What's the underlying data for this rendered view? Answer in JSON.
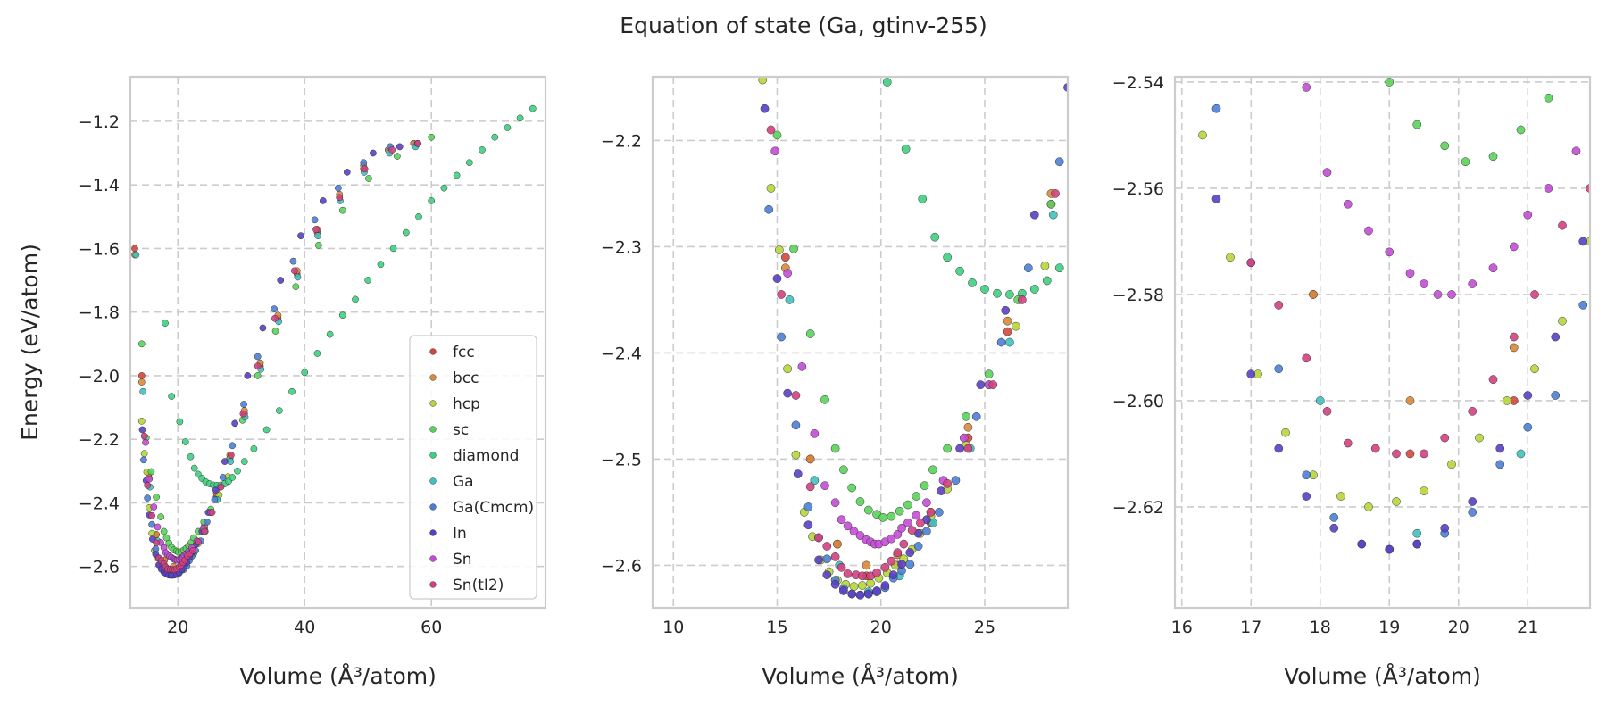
{
  "figure": {
    "title": "Equation of state (Ga, gtinv-255)"
  },
  "chart_data": [
    {
      "type": "scatter",
      "title": "",
      "xlabel": "Volume (Å³/atom)",
      "ylabel": "Energy (eV/atom)",
      "xlim": [
        12.5,
        78
      ],
      "ylim": [
        -2.73,
        -1.06
      ],
      "xticks": [
        "20",
        "40",
        "60"
      ],
      "yticks": [
        "−1.2",
        "−1.4",
        "−1.6",
        "−1.8",
        "−2.0",
        "−2.2",
        "−2.4",
        "−2.6"
      ],
      "grid": true,
      "legend_position": "bottom-right",
      "series": [
        {
          "name": "fcc",
          "color": "#d1473f",
          "x": [
            13.2,
            14.3,
            15.4,
            16.6,
            17.9,
            19.3,
            20.8,
            22.4,
            24.2,
            26.1,
            28.2,
            30.5,
            33.0,
            35.8,
            38.8,
            42.0,
            45.5,
            49.3,
            53.2,
            57.2
          ],
          "y": [
            -1.6,
            -2.0,
            -2.31,
            -2.5,
            -2.58,
            -2.61,
            -2.6,
            -2.56,
            -2.48,
            -2.38,
            -2.26,
            -2.12,
            -1.97,
            -1.82,
            -1.68,
            -1.55,
            -1.44,
            -1.35,
            -1.29,
            -1.27
          ]
        },
        {
          "name": "bcc",
          "color": "#d98a3a",
          "x": [
            13.2,
            14.3,
            15.4,
            16.6,
            17.9,
            19.3,
            20.8,
            22.4,
            24.2,
            26.1,
            28.2,
            30.5,
            33.0,
            35.8,
            38.8,
            42.0,
            45.5,
            49.3,
            53.2,
            57.2
          ],
          "y": [
            -1.62,
            -2.02,
            -2.32,
            -2.5,
            -2.58,
            -2.6,
            -2.59,
            -2.55,
            -2.47,
            -2.37,
            -2.25,
            -2.11,
            -1.96,
            -1.81,
            -1.67,
            -1.54,
            -1.43,
            -1.34,
            -1.29,
            -1.27
          ]
        },
        {
          "name": "hcp",
          "color": "#b6d63a",
          "x": [
            14.3,
            14.7,
            15.1,
            15.5,
            15.9,
            16.3,
            16.7,
            17.1,
            17.5,
            17.9,
            18.3,
            18.7,
            19.1,
            19.5,
            19.9,
            20.3,
            20.7,
            21.1,
            21.5,
            21.9,
            22.4,
            23.2,
            24.1,
            25.2,
            26.5,
            27.9
          ],
          "y": [
            -2.143,
            -2.245,
            -2.303,
            -2.415,
            -2.496,
            -2.55,
            -2.573,
            -2.595,
            -2.606,
            -2.614,
            -2.618,
            -2.62,
            -2.619,
            -2.617,
            -2.612,
            -2.607,
            -2.6,
            -2.594,
            -2.585,
            -2.57,
            -2.554,
            -2.528,
            -2.487,
            -2.43,
            -2.375,
            -2.318
          ]
        },
        {
          "name": "sc",
          "color": "#5ad35a",
          "x": [
            14.3,
            15.0,
            15.8,
            16.6,
            17.3,
            17.8,
            18.2,
            18.6,
            19.0,
            19.4,
            19.8,
            20.1,
            20.5,
            20.9,
            21.3,
            21.7,
            22.1,
            22.5,
            23.2,
            24.1,
            25.2,
            26.6,
            28.2,
            30.2,
            32.6,
            35.4,
            38.6,
            42.2,
            46.0,
            50.1,
            54.6,
            60.0
          ],
          "y": [
            -1.9,
            -2.195,
            -2.302,
            -2.382,
            -2.444,
            -2.49,
            -2.51,
            -2.527,
            -2.54,
            -2.548,
            -2.552,
            -2.555,
            -2.554,
            -2.549,
            -2.543,
            -2.535,
            -2.525,
            -2.51,
            -2.49,
            -2.46,
            -2.42,
            -2.35,
            -2.26,
            -2.14,
            -2.0,
            -1.86,
            -1.72,
            -1.59,
            -1.48,
            -1.38,
            -1.31,
            -1.25
          ]
        },
        {
          "name": "diamond",
          "color": "#3ecf80",
          "x": [
            18.0,
            19.0,
            20.3,
            21.2,
            22.0,
            22.6,
            23.2,
            23.8,
            24.4,
            25.0,
            25.6,
            26.2,
            26.8,
            27.4,
            28.0,
            28.6,
            29.4,
            30.5,
            32,
            34,
            36,
            38,
            40,
            42,
            44,
            46,
            48,
            50,
            52,
            54,
            56,
            58,
            60,
            62,
            64,
            66,
            68,
            70,
            72,
            74,
            76
          ],
          "y": [
            -1.835,
            -2.065,
            -2.145,
            -2.208,
            -2.255,
            -2.291,
            -2.31,
            -2.323,
            -2.334,
            -2.34,
            -2.344,
            -2.345,
            -2.344,
            -2.34,
            -2.332,
            -2.32,
            -2.3,
            -2.27,
            -2.23,
            -2.17,
            -2.11,
            -2.05,
            -1.99,
            -1.93,
            -1.87,
            -1.81,
            -1.76,
            -1.7,
            -1.65,
            -1.6,
            -1.55,
            -1.5,
            -1.45,
            -1.41,
            -1.37,
            -1.33,
            -1.29,
            -1.25,
            -1.22,
            -1.19,
            -1.16
          ]
        },
        {
          "name": "Ga",
          "color": "#3fc2c0",
          "x": [
            13.4,
            14.5,
            15.6,
            16.8,
            18.0,
            19.4,
            20.9,
            22.5,
            24.3,
            26.2,
            28.3,
            30.6,
            33.1,
            35.9,
            38.9,
            42.1,
            45.6,
            49.4,
            53.4,
            57.5
          ],
          "y": [
            -1.62,
            -2.05,
            -2.35,
            -2.52,
            -2.6,
            -2.625,
            -2.61,
            -2.56,
            -2.49,
            -2.39,
            -2.27,
            -2.13,
            -1.98,
            -1.83,
            -1.69,
            -1.56,
            -1.45,
            -1.36,
            -1.3,
            -1.28
          ]
        },
        {
          "name": "Ga(Cmcm)",
          "color": "#4b7fd6",
          "x": [
            14.6,
            15.2,
            15.9,
            16.5,
            17.0,
            17.4,
            17.8,
            18.2,
            18.6,
            19.0,
            19.4,
            19.8,
            20.2,
            20.6,
            21.0,
            21.4,
            21.8,
            22.2,
            22.8,
            23.6,
            24.6,
            25.8,
            27.1,
            28.6,
            30.4,
            32.6,
            35.2,
            38.2,
            41.6,
            45.3,
            49.3,
            53.5,
            57.8
          ],
          "y": [
            -2.265,
            -2.385,
            -2.468,
            -2.545,
            -2.574,
            -2.594,
            -2.614,
            -2.622,
            -2.627,
            -2.628,
            -2.627,
            -2.625,
            -2.621,
            -2.612,
            -2.605,
            -2.599,
            -2.582,
            -2.568,
            -2.55,
            -2.52,
            -2.46,
            -2.39,
            -2.32,
            -2.22,
            -2.09,
            -1.94,
            -1.79,
            -1.64,
            -1.51,
            -1.41,
            -1.33,
            -1.28,
            -1.27
          ]
        },
        {
          "name": "In",
          "color": "#5a3fc4",
          "x": [
            14.4,
            15.0,
            15.5,
            16.0,
            16.5,
            17.0,
            17.4,
            17.8,
            18.2,
            18.6,
            19.0,
            19.4,
            19.8,
            20.2,
            20.6,
            21.0,
            21.4,
            21.8,
            22.2,
            22.9,
            23.8,
            24.8,
            26.0,
            27.4,
            29.0,
            31.0,
            33.4,
            36.2,
            39.4,
            42.9,
            46.7,
            50.8,
            55.0
          ],
          "y": [
            -2.17,
            -2.33,
            -2.438,
            -2.514,
            -2.562,
            -2.595,
            -2.609,
            -2.618,
            -2.624,
            -2.627,
            -2.628,
            -2.627,
            -2.624,
            -2.619,
            -2.609,
            -2.599,
            -2.588,
            -2.57,
            -2.557,
            -2.53,
            -2.49,
            -2.43,
            -2.36,
            -2.27,
            -2.15,
            -2.0,
            -1.85,
            -1.7,
            -1.56,
            -1.45,
            -1.36,
            -1.3,
            -1.28
          ]
        },
        {
          "name": "Sn",
          "color": "#c44bd6",
          "x": [
            14.9,
            15.5,
            16.2,
            16.8,
            17.3,
            17.8,
            18.1,
            18.4,
            18.7,
            19.0,
            19.3,
            19.5,
            19.7,
            19.9,
            20.2,
            20.5,
            20.8,
            21.0,
            21.3,
            21.7,
            22.2,
            23.0,
            24.0,
            25.2
          ],
          "y": [
            -2.21,
            -2.325,
            -2.413,
            -2.476,
            -2.525,
            -2.541,
            -2.557,
            -2.563,
            -2.568,
            -2.572,
            -2.576,
            -2.578,
            -2.58,
            -2.58,
            -2.578,
            -2.575,
            -2.571,
            -2.565,
            -2.56,
            -2.553,
            -2.541,
            -2.52,
            -2.48,
            -2.43
          ]
        },
        {
          "name": "Sn(tI2)",
          "color": "#d43f82",
          "x": [
            14.7,
            15.2,
            15.9,
            16.6,
            17.0,
            17.4,
            17.8,
            18.1,
            18.4,
            18.8,
            19.1,
            19.5,
            19.8,
            20.2,
            20.5,
            20.8,
            21.1,
            21.5,
            21.9,
            22.4,
            23.2,
            24.2,
            25.4,
            26.8,
            28.4,
            30.3,
            32.6,
            35.3,
            38.4,
            41.8,
            45.5,
            49.5,
            53.8,
            57.9
          ],
          "y": [
            -2.19,
            -2.345,
            -2.44,
            -2.526,
            -2.574,
            -2.582,
            -2.592,
            -2.602,
            -2.608,
            -2.609,
            -2.61,
            -2.61,
            -2.607,
            -2.602,
            -2.596,
            -2.588,
            -2.58,
            -2.567,
            -2.56,
            -2.55,
            -2.523,
            -2.49,
            -2.43,
            -2.35,
            -2.25,
            -2.12,
            -1.97,
            -1.82,
            -1.67,
            -1.54,
            -1.44,
            -1.35,
            -1.29,
            -1.27
          ]
        }
      ]
    },
    {
      "type": "scatter",
      "title": "",
      "xlabel": "Volume (Å³/atom)",
      "ylabel": "",
      "xlim": [
        9,
        29
      ],
      "ylim": [
        -2.64,
        -2.14
      ],
      "xticks": [
        "10",
        "15",
        "20",
        "25"
      ],
      "yticks": [
        "−2.2",
        "−2.3",
        "−2.4",
        "−2.5",
        "−2.6"
      ],
      "grid": true,
      "legend_position": "none",
      "series": "same as panel 1"
    },
    {
      "type": "scatter",
      "title": "",
      "xlabel": "Volume (Å³/atom)",
      "ylabel": "",
      "xlim": [
        15.9,
        21.9
      ],
      "ylim": [
        -2.639,
        -2.539
      ],
      "xticks": [
        "16",
        "17",
        "18",
        "19",
        "20",
        "21"
      ],
      "yticks": [
        "−2.54",
        "−2.56",
        "−2.58",
        "−2.60",
        "−2.62"
      ],
      "grid": true,
      "legend_position": "none",
      "series": "same as panel 1"
    }
  ]
}
